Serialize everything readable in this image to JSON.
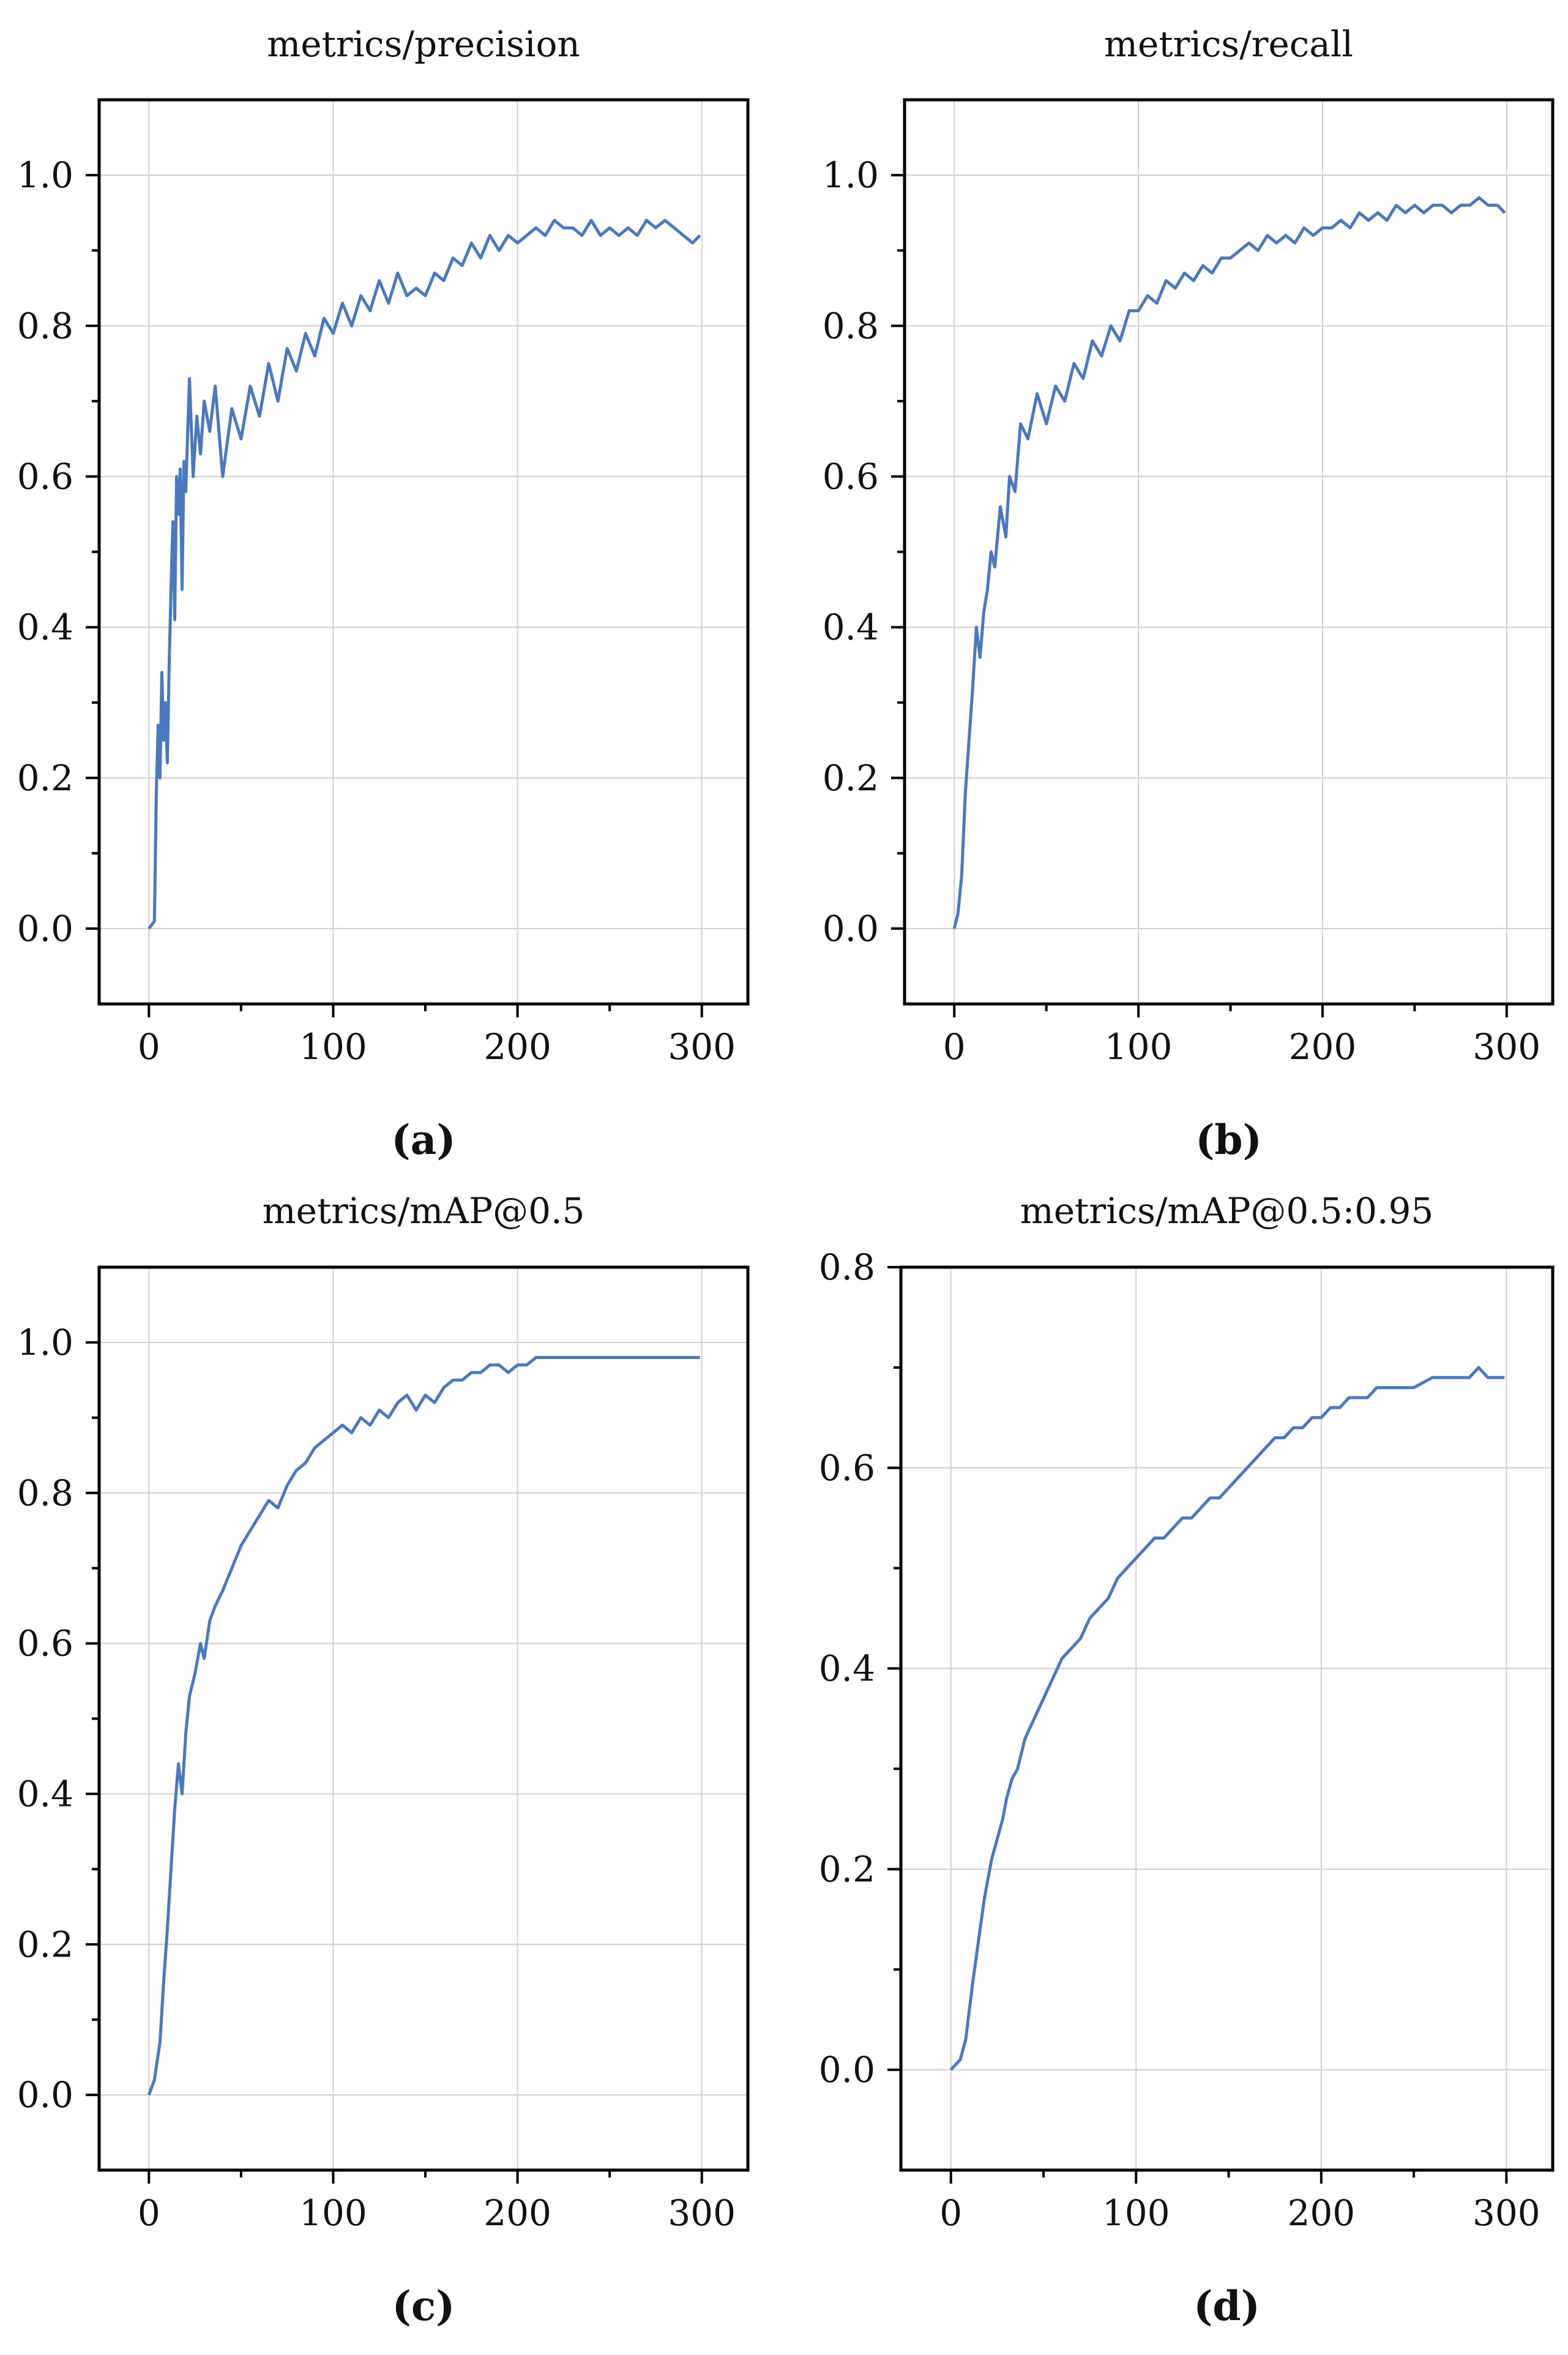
{
  "colors": {
    "line": "#4a79bd",
    "grid": "#cfcfcf",
    "axis": "#000000"
  },
  "chart_data": [
    {
      "type": "line",
      "title": "metrics/precision",
      "caption": "(a)",
      "xlabel": "",
      "ylabel": "",
      "xlim": [
        -27,
        325
      ],
      "ylim": [
        -0.1,
        1.1
      ],
      "xticks": [
        0,
        100,
        200,
        300
      ],
      "xticklabels": [
        "0",
        "100",
        "200",
        "300"
      ],
      "yticks": [
        0.0,
        0.2,
        0.4,
        0.6,
        0.8,
        1.0
      ],
      "yticklabels": [
        "0.0",
        "0.2",
        "0.4",
        "0.6",
        "0.8",
        "1.0"
      ],
      "grid": true,
      "series": [
        {
          "name": "metrics/precision",
          "x": [
            0,
            3,
            4,
            5,
            6,
            7,
            8,
            9,
            10,
            11,
            12,
            13,
            14,
            15,
            16,
            17,
            18,
            19,
            20,
            22,
            24,
            26,
            28,
            30,
            33,
            36,
            40,
            45,
            50,
            55,
            60,
            65,
            70,
            75,
            80,
            85,
            90,
            95,
            100,
            105,
            110,
            115,
            120,
            125,
            130,
            135,
            140,
            145,
            150,
            155,
            160,
            165,
            170,
            175,
            180,
            185,
            190,
            195,
            200,
            205,
            210,
            215,
            220,
            225,
            230,
            235,
            240,
            245,
            250,
            255,
            260,
            265,
            270,
            275,
            280,
            285,
            290,
            295,
            299
          ],
          "y": [
            0.0,
            0.01,
            0.18,
            0.27,
            0.2,
            0.34,
            0.25,
            0.3,
            0.22,
            0.35,
            0.45,
            0.54,
            0.41,
            0.6,
            0.55,
            0.61,
            0.45,
            0.62,
            0.58,
            0.73,
            0.6,
            0.68,
            0.63,
            0.7,
            0.66,
            0.72,
            0.6,
            0.69,
            0.65,
            0.72,
            0.68,
            0.75,
            0.7,
            0.77,
            0.74,
            0.79,
            0.76,
            0.81,
            0.79,
            0.83,
            0.8,
            0.84,
            0.82,
            0.86,
            0.83,
            0.87,
            0.84,
            0.85,
            0.84,
            0.87,
            0.86,
            0.89,
            0.88,
            0.91,
            0.89,
            0.92,
            0.9,
            0.92,
            0.91,
            0.92,
            0.93,
            0.92,
            0.94,
            0.93,
            0.93,
            0.92,
            0.94,
            0.92,
            0.93,
            0.92,
            0.93,
            0.92,
            0.94,
            0.93,
            0.94,
            0.93,
            0.92,
            0.91,
            0.92
          ]
        }
      ]
    },
    {
      "type": "line",
      "title": "metrics/recall",
      "caption": "(b)",
      "xlabel": "",
      "ylabel": "",
      "xlim": [
        -27,
        325
      ],
      "ylim": [
        -0.1,
        1.1
      ],
      "xticks": [
        0,
        100,
        200,
        300
      ],
      "xticklabels": [
        "0",
        "100",
        "200",
        "300"
      ],
      "yticks": [
        0.0,
        0.2,
        0.4,
        0.6,
        0.8,
        1.0
      ],
      "yticklabels": [
        "0.0",
        "0.2",
        "0.4",
        "0.6",
        "0.8",
        "1.0"
      ],
      "grid": true,
      "series": [
        {
          "name": "metrics/recall",
          "x": [
            0,
            2,
            4,
            6,
            8,
            10,
            12,
            14,
            16,
            18,
            20,
            22,
            25,
            28,
            30,
            33,
            36,
            40,
            45,
            50,
            55,
            60,
            65,
            70,
            75,
            80,
            85,
            90,
            95,
            100,
            105,
            110,
            115,
            120,
            125,
            130,
            135,
            140,
            145,
            150,
            155,
            160,
            165,
            170,
            175,
            180,
            185,
            190,
            195,
            200,
            205,
            210,
            215,
            220,
            225,
            230,
            235,
            240,
            245,
            250,
            255,
            260,
            265,
            270,
            275,
            280,
            285,
            290,
            295,
            299
          ],
          "y": [
            0.0,
            0.02,
            0.07,
            0.18,
            0.25,
            0.32,
            0.4,
            0.36,
            0.42,
            0.45,
            0.5,
            0.48,
            0.56,
            0.52,
            0.6,
            0.58,
            0.67,
            0.65,
            0.71,
            0.67,
            0.72,
            0.7,
            0.75,
            0.73,
            0.78,
            0.76,
            0.8,
            0.78,
            0.82,
            0.82,
            0.84,
            0.83,
            0.86,
            0.85,
            0.87,
            0.86,
            0.88,
            0.87,
            0.89,
            0.89,
            0.9,
            0.91,
            0.9,
            0.92,
            0.91,
            0.92,
            0.91,
            0.93,
            0.92,
            0.93,
            0.93,
            0.94,
            0.93,
            0.95,
            0.94,
            0.95,
            0.94,
            0.96,
            0.95,
            0.96,
            0.95,
            0.96,
            0.96,
            0.95,
            0.96,
            0.96,
            0.97,
            0.96,
            0.96,
            0.95
          ]
        }
      ]
    },
    {
      "type": "line",
      "title": "metrics/mAP@0.5",
      "caption": "(c)",
      "xlabel": "",
      "ylabel": "",
      "xlim": [
        -27,
        325
      ],
      "ylim": [
        -0.1,
        1.1
      ],
      "xticks": [
        0,
        100,
        200,
        300
      ],
      "xticklabels": [
        "0",
        "100",
        "200",
        "300"
      ],
      "yticks": [
        0.0,
        0.2,
        0.4,
        0.6,
        0.8,
        1.0
      ],
      "yticklabels": [
        "0.0",
        "0.2",
        "0.4",
        "0.6",
        "0.8",
        "1.0"
      ],
      "grid": true,
      "series": [
        {
          "name": "metrics/mAP@0.5",
          "x": [
            0,
            3,
            6,
            8,
            10,
            12,
            14,
            16,
            18,
            20,
            22,
            25,
            28,
            30,
            33,
            36,
            40,
            45,
            50,
            55,
            60,
            65,
            70,
            75,
            80,
            85,
            90,
            95,
            100,
            105,
            110,
            115,
            120,
            125,
            130,
            135,
            140,
            145,
            150,
            155,
            160,
            165,
            170,
            175,
            180,
            185,
            190,
            195,
            200,
            205,
            210,
            215,
            220,
            225,
            230,
            240,
            250,
            260,
            270,
            280,
            290,
            295,
            299
          ],
          "y": [
            0.0,
            0.02,
            0.07,
            0.15,
            0.22,
            0.3,
            0.38,
            0.44,
            0.4,
            0.48,
            0.53,
            0.56,
            0.6,
            0.58,
            0.63,
            0.65,
            0.67,
            0.7,
            0.73,
            0.75,
            0.77,
            0.79,
            0.78,
            0.81,
            0.83,
            0.84,
            0.86,
            0.87,
            0.88,
            0.89,
            0.88,
            0.9,
            0.89,
            0.91,
            0.9,
            0.92,
            0.93,
            0.91,
            0.93,
            0.92,
            0.94,
            0.95,
            0.95,
            0.96,
            0.96,
            0.97,
            0.97,
            0.96,
            0.97,
            0.97,
            0.98,
            0.98,
            0.98,
            0.98,
            0.98,
            0.98,
            0.98,
            0.98,
            0.98,
            0.98,
            0.98,
            0.98,
            0.98
          ]
        }
      ]
    },
    {
      "type": "line",
      "title": "metrics/mAP@0.5:0.95",
      "caption": "(d)",
      "xlabel": "",
      "ylabel": "",
      "xlim": [
        -27,
        325
      ],
      "ylim": [
        -0.1,
        0.8
      ],
      "xticks": [
        0,
        100,
        200,
        300
      ],
      "xticklabels": [
        "0",
        "100",
        "200",
        "300"
      ],
      "yticks": [
        0.0,
        0.2,
        0.4,
        0.6,
        0.8
      ],
      "yticklabels": [
        "0.0",
        "0.2",
        "0.4",
        "0.6",
        "0.8"
      ],
      "grid": true,
      "series": [
        {
          "name": "metrics/mAP@0.5:0.95",
          "x": [
            0,
            5,
            8,
            10,
            12,
            15,
            18,
            20,
            22,
            25,
            28,
            30,
            33,
            36,
            40,
            45,
            50,
            55,
            60,
            65,
            70,
            75,
            80,
            85,
            90,
            95,
            100,
            105,
            110,
            115,
            120,
            125,
            130,
            135,
            140,
            145,
            150,
            155,
            160,
            165,
            170,
            175,
            180,
            185,
            190,
            195,
            200,
            205,
            210,
            215,
            220,
            225,
            230,
            240,
            250,
            260,
            270,
            280,
            285,
            290,
            295,
            299
          ],
          "y": [
            0.0,
            0.01,
            0.03,
            0.06,
            0.09,
            0.13,
            0.17,
            0.19,
            0.21,
            0.23,
            0.25,
            0.27,
            0.29,
            0.3,
            0.33,
            0.35,
            0.37,
            0.39,
            0.41,
            0.42,
            0.43,
            0.45,
            0.46,
            0.47,
            0.49,
            0.5,
            0.51,
            0.52,
            0.53,
            0.53,
            0.54,
            0.55,
            0.55,
            0.56,
            0.57,
            0.57,
            0.58,
            0.59,
            0.6,
            0.61,
            0.62,
            0.63,
            0.63,
            0.64,
            0.64,
            0.65,
            0.65,
            0.66,
            0.66,
            0.67,
            0.67,
            0.67,
            0.68,
            0.68,
            0.68,
            0.69,
            0.69,
            0.69,
            0.7,
            0.69,
            0.69,
            0.69
          ]
        }
      ]
    }
  ]
}
